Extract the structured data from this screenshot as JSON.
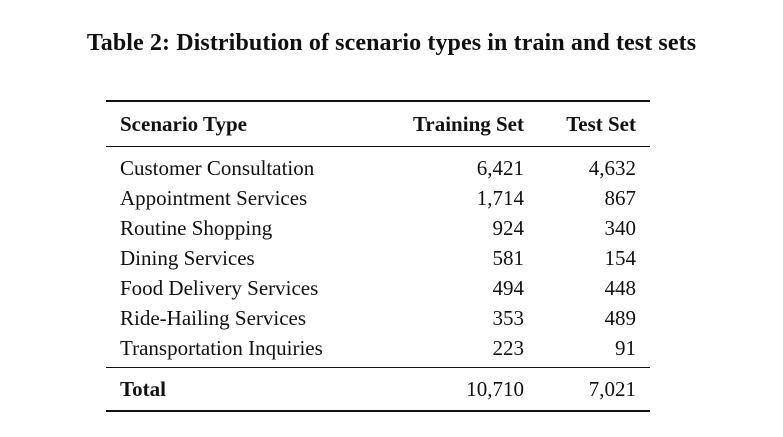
{
  "caption": "Table 2: Distribution of scenario types in train and test sets",
  "table": {
    "headers": {
      "scenario_type": "Scenario Type",
      "training_set": "Training Set",
      "test_set": "Test Set"
    },
    "rows": [
      {
        "scenario": "Customer Consultation",
        "training": "6,421",
        "test": "4,632"
      },
      {
        "scenario": "Appointment Services",
        "training": "1,714",
        "test": "867"
      },
      {
        "scenario": "Routine Shopping",
        "training": "924",
        "test": "340"
      },
      {
        "scenario": "Dining Services",
        "training": "581",
        "test": "154"
      },
      {
        "scenario": "Food Delivery Services",
        "training": "494",
        "test": "448"
      },
      {
        "scenario": "Ride-Hailing Services",
        "training": "353",
        "test": "489"
      },
      {
        "scenario": "Transportation Inquiries",
        "training": "223",
        "test": "91"
      }
    ],
    "total": {
      "label": "Total",
      "training": "10,710",
      "test": "7,021"
    }
  }
}
